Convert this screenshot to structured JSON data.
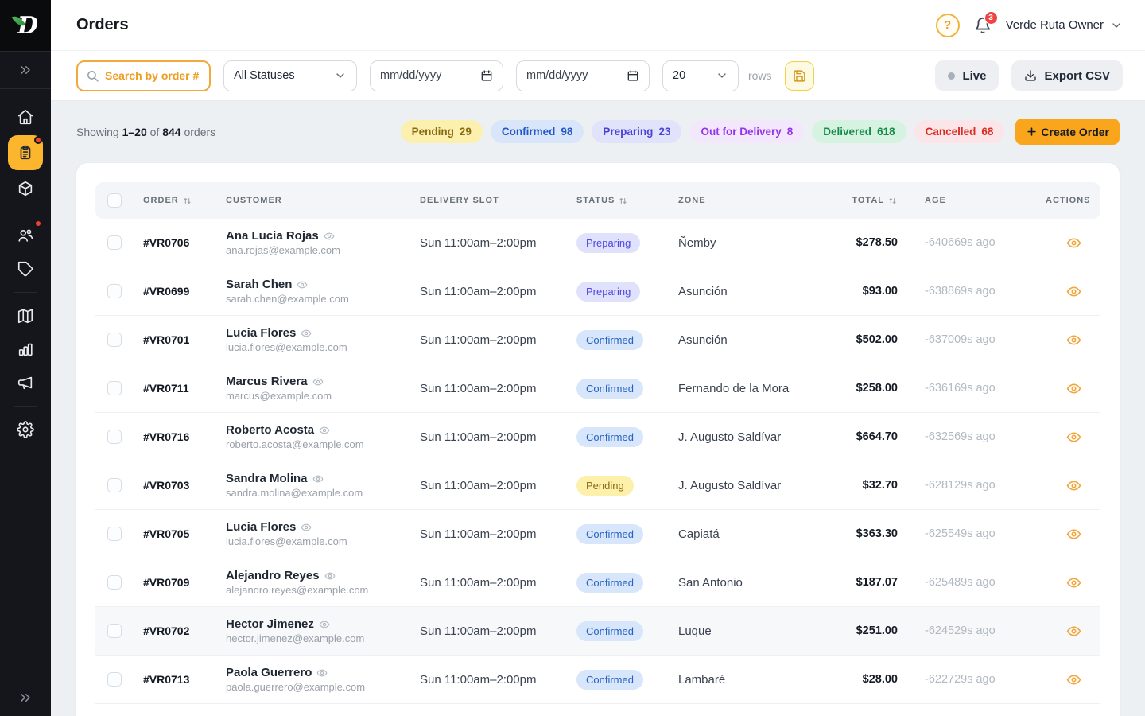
{
  "brand": {
    "logo_letter": "D"
  },
  "header": {
    "title": "Orders",
    "notification_count": "3",
    "user_name": "Verde Ruta Owner"
  },
  "filters": {
    "search_placeholder": "Search by order #",
    "status_selected": "All Statuses",
    "date_from": "mm/dd/yyyy",
    "date_to": "mm/dd/yyyy",
    "page_size": "20",
    "rows_label": "rows",
    "live_label": "Live",
    "export_label": "Export CSV"
  },
  "summary": {
    "showing_label": "Showing",
    "range": "1–20",
    "of_label": "of",
    "total": "844",
    "orders_label": "orders",
    "create_order_label": "Create Order",
    "chips": [
      {
        "label": "Pending",
        "count": "29",
        "bg": "#fbf0ad",
        "fg": "#8b6a12"
      },
      {
        "label": "Confirmed",
        "count": "98",
        "bg": "#d9e6fa",
        "fg": "#2457c5"
      },
      {
        "label": "Preparing",
        "count": "23",
        "bg": "#e1e3fb",
        "fg": "#4a44d6"
      },
      {
        "label": "Out for Delivery",
        "count": "8",
        "bg": "#f3e7fc",
        "fg": "#9333ea"
      },
      {
        "label": "Delivered",
        "count": "618",
        "bg": "#d6f3e2",
        "fg": "#168a46"
      },
      {
        "label": "Cancelled",
        "count": "68",
        "bg": "#fce5e8",
        "fg": "#d92d20"
      }
    ]
  },
  "sidebar": {
    "items": [
      {
        "id": "home",
        "icon": "home-icon"
      },
      {
        "id": "orders",
        "icon": "orders-icon",
        "active": true,
        "dot": true
      },
      {
        "id": "package",
        "icon": "package-icon"
      },
      {
        "divider": true
      },
      {
        "id": "customers",
        "icon": "users-icon",
        "dot": true
      },
      {
        "id": "tags",
        "icon": "tag-icon"
      },
      {
        "divider": true
      },
      {
        "id": "map",
        "icon": "map-icon"
      },
      {
        "id": "analytics",
        "icon": "chart-icon"
      },
      {
        "id": "announce",
        "icon": "megaphone-icon"
      },
      {
        "divider": true
      },
      {
        "id": "settings",
        "icon": "gear-icon"
      }
    ]
  },
  "table": {
    "columns": [
      {
        "label": "",
        "key": "check"
      },
      {
        "label": "ORDER",
        "sort": true
      },
      {
        "label": "CUSTOMER"
      },
      {
        "label": "DELIVERY SLOT"
      },
      {
        "label": "STATUS",
        "sort": true
      },
      {
        "label": "ZONE"
      },
      {
        "label": "TOTAL",
        "sort": true,
        "align": "right"
      },
      {
        "label": "AGE",
        "cls": "age"
      },
      {
        "label": "ACTIONS",
        "cls": "actions"
      }
    ],
    "status_styles": {
      "Pending": {
        "bg": "#fcf0ab",
        "fg": "#8b6a12"
      },
      "Confirmed": {
        "bg": "#d8e6fb",
        "fg": "#2563c2"
      },
      "Preparing": {
        "bg": "#e0e2fc",
        "fg": "#4f46e5"
      }
    },
    "rows": [
      {
        "id": "#VR0706",
        "customer": "Ana Lucia Rojas",
        "email": "ana.rojas@example.com",
        "slot": "Sun 11:00am–2:00pm",
        "status": "Preparing",
        "zone": "Ñemby",
        "total": "$278.50",
        "age": "-640669s ago"
      },
      {
        "id": "#VR0699",
        "customer": "Sarah Chen",
        "email": "sarah.chen@example.com",
        "slot": "Sun 11:00am–2:00pm",
        "status": "Preparing",
        "zone": "Asunción",
        "total": "$93.00",
        "age": "-638869s ago"
      },
      {
        "id": "#VR0701",
        "customer": "Lucia Flores",
        "email": "lucia.flores@example.com",
        "slot": "Sun 11:00am–2:00pm",
        "status": "Confirmed",
        "zone": "Asunción",
        "total": "$502.00",
        "age": "-637009s ago"
      },
      {
        "id": "#VR0711",
        "customer": "Marcus Rivera",
        "email": "marcus@example.com",
        "slot": "Sun 11:00am–2:00pm",
        "status": "Confirmed",
        "zone": "Fernando de la Mora",
        "total": "$258.00",
        "age": "-636169s ago"
      },
      {
        "id": "#VR0716",
        "customer": "Roberto Acosta",
        "email": "roberto.acosta@example.com",
        "slot": "Sun 11:00am–2:00pm",
        "status": "Confirmed",
        "zone": "J. Augusto Saldívar",
        "total": "$664.70",
        "age": "-632569s ago"
      },
      {
        "id": "#VR0703",
        "customer": "Sandra Molina",
        "email": "sandra.molina@example.com",
        "slot": "Sun 11:00am–2:00pm",
        "status": "Pending",
        "zone": "J. Augusto Saldívar",
        "total": "$32.70",
        "age": "-628129s ago"
      },
      {
        "id": "#VR0705",
        "customer": "Lucia Flores",
        "email": "lucia.flores@example.com",
        "slot": "Sun 11:00am–2:00pm",
        "status": "Confirmed",
        "zone": "Capiatá",
        "total": "$363.30",
        "age": "-625549s ago"
      },
      {
        "id": "#VR0709",
        "customer": "Alejandro Reyes",
        "email": "alejandro.reyes@example.com",
        "slot": "Sun 11:00am–2:00pm",
        "status": "Confirmed",
        "zone": "San Antonio",
        "total": "$187.07",
        "age": "-625489s ago"
      },
      {
        "id": "#VR0702",
        "customer": "Hector Jimenez",
        "email": "hector.jimenez@example.com",
        "slot": "Sun 11:00am–2:00pm",
        "status": "Confirmed",
        "zone": "Luque",
        "total": "$251.00",
        "age": "-624529s ago",
        "highlighted": true
      },
      {
        "id": "#VR0713",
        "customer": "Paola Guerrero",
        "email": "paola.guerrero@example.com",
        "slot": "Sun 11:00am–2:00pm",
        "status": "Confirmed",
        "zone": "Lambaré",
        "total": "$28.00",
        "age": "-622729s ago"
      }
    ]
  }
}
